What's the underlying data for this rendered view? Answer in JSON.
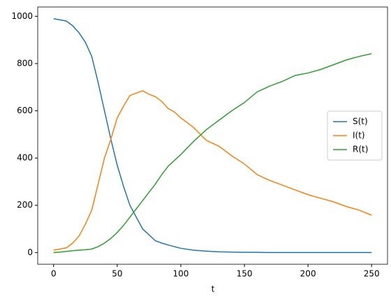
{
  "chart_data": {
    "type": "line",
    "x_label": "t",
    "x": [
      0,
      5,
      10,
      15,
      20,
      25,
      30,
      35,
      40,
      45,
      50,
      55,
      60,
      65,
      70,
      75,
      80,
      85,
      90,
      95,
      100,
      110,
      120,
      130,
      140,
      150,
      160,
      170,
      180,
      190,
      200,
      210,
      220,
      230,
      240,
      250
    ],
    "series": [
      {
        "name": "S(t)",
        "color": "#1f77b4",
        "values": [
          990,
          985,
          980,
          960,
          930,
          890,
          830,
          720,
          600,
          480,
          370,
          280,
          200,
          150,
          100,
          75,
          50,
          40,
          32,
          25,
          18,
          10,
          6,
          3,
          2,
          1,
          1,
          0,
          0,
          0,
          0,
          0,
          0,
          0,
          0,
          0
        ]
      },
      {
        "name": "I(t)",
        "color": "#ff7f0e",
        "values": [
          10,
          15,
          20,
          40,
          70,
          120,
          180,
          290,
          400,
          480,
          570,
          620,
          665,
          675,
          685,
          670,
          660,
          640,
          610,
          595,
          570,
          530,
          475,
          450,
          410,
          375,
          330,
          305,
          285,
          265,
          245,
          230,
          215,
          195,
          180,
          158
        ]
      },
      {
        "name": "R(t)",
        "color": "#2ca02c",
        "values": [
          0,
          2,
          5,
          8,
          10,
          12,
          15,
          25,
          40,
          60,
          85,
          115,
          150,
          185,
          220,
          255,
          290,
          330,
          365,
          390,
          415,
          470,
          520,
          560,
          600,
          635,
          680,
          705,
          725,
          750,
          760,
          775,
          795,
          815,
          830,
          842
        ]
      }
    ],
    "xlim": [
      -12.5,
      262.5
    ],
    "xticks": [
      0,
      50,
      100,
      150,
      200,
      250
    ],
    "ylim": [
      -49.5,
      1039.5
    ],
    "yticks": [
      0,
      200,
      400,
      600,
      800,
      1000
    ],
    "legend": "center right",
    "grid": false
  }
}
